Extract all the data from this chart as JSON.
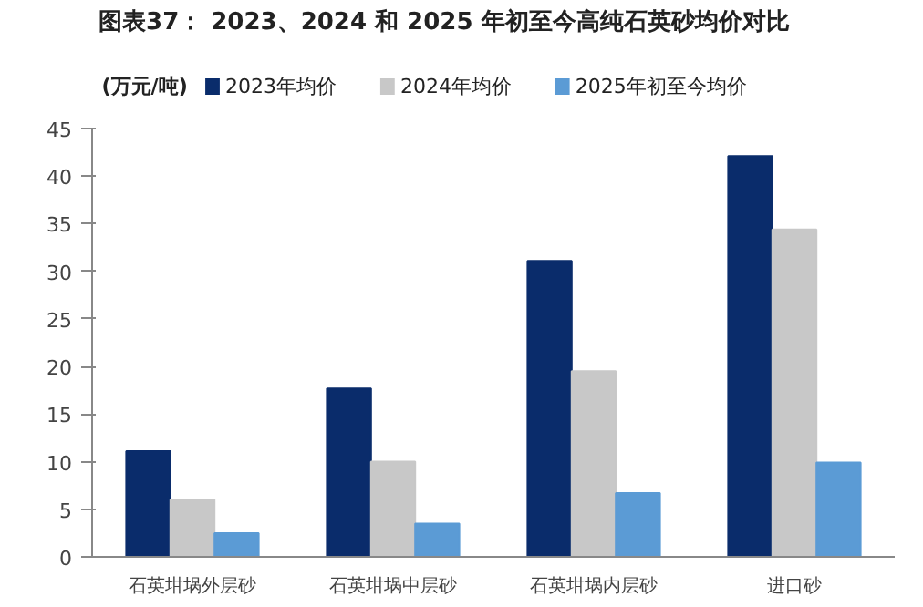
{
  "chart_data": {
    "type": "bar",
    "title": "图表37： 2023、2024 和 2025 年初至今高纯石英砂均价对比",
    "ylabel": "(万元/吨)",
    "categories": [
      "石英坩埚外层砂",
      "石英坩埚中层砂",
      "石英坩埚内层砂",
      "进口砂"
    ],
    "series": [
      {
        "name": "2023年均价",
        "color": "#0a2c6b",
        "values": [
          11.1,
          17.7,
          31.1,
          42.1
        ]
      },
      {
        "name": "2024年均价",
        "color": "#c8c8c8",
        "values": [
          6.0,
          10.0,
          19.5,
          34.4
        ]
      },
      {
        "name": "2025年初至今均价",
        "color": "#5b9bd5",
        "values": [
          2.5,
          3.5,
          6.7,
          9.9
        ]
      }
    ],
    "ylim": [
      0,
      45
    ],
    "yticks": [
      0,
      5,
      10,
      15,
      20,
      25,
      30,
      35,
      40,
      45
    ],
    "grid": false,
    "legend": "top"
  }
}
